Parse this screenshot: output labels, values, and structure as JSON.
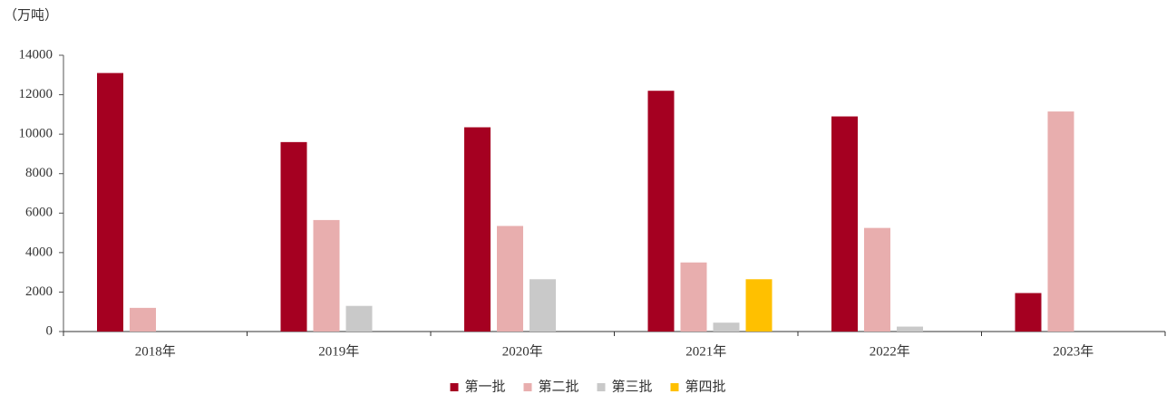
{
  "chart_data": {
    "type": "bar",
    "y_label": "（万吨）",
    "categories": [
      "2018年",
      "2019年",
      "2020年",
      "2021年",
      "2022年",
      "2023年"
    ],
    "series": [
      {
        "name": "第一批",
        "color": "#a50021",
        "values": [
          13100,
          9600,
          10350,
          12200,
          10900,
          1950
        ]
      },
      {
        "name": "第二批",
        "color": "#e8aeae",
        "values": [
          1200,
          5650,
          5350,
          3500,
          5250,
          11150
        ]
      },
      {
        "name": "第三批",
        "color": "#c9c9c9",
        "values": [
          null,
          1300,
          2650,
          450,
          250,
          null
        ]
      },
      {
        "name": "第四批",
        "color": "#ffc000",
        "values": [
          null,
          null,
          null,
          2650,
          null,
          null
        ]
      }
    ],
    "ylim": [
      0,
      14000
    ],
    "yticks": [
      0,
      2000,
      4000,
      6000,
      8000,
      10000,
      12000,
      14000
    ],
    "legend": "bottom"
  }
}
